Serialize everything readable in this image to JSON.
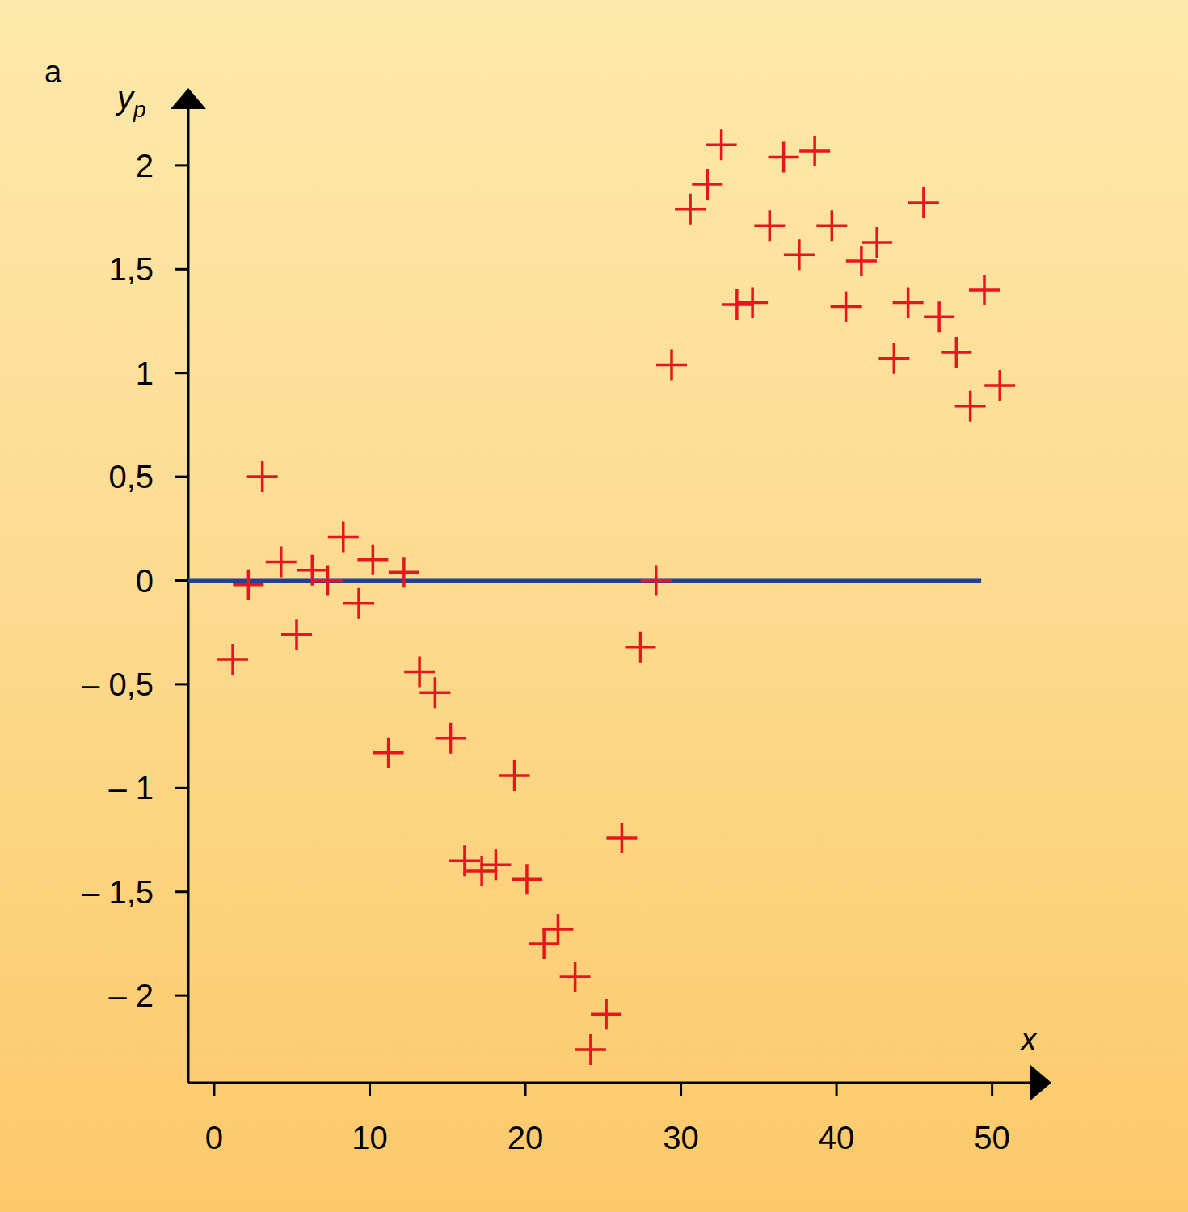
{
  "chart_data": {
    "type": "scatter",
    "title": "a",
    "xlabel": "x",
    "ylabel": "yp",
    "xlim": [
      -1.66,
      53.5
    ],
    "ylim": [
      -2.42,
      2.35
    ],
    "xticks": [
      0,
      10,
      20,
      30,
      40,
      50
    ],
    "yticks": [
      {
        "value": -2,
        "label": "– 2"
      },
      {
        "value": -1.5,
        "label": "– 1,5"
      },
      {
        "value": -1,
        "label": "– 1"
      },
      {
        "value": -0.5,
        "label": "– 0,5"
      },
      0,
      {
        "value": 0.5,
        "label": "0,5"
      },
      1,
      {
        "value": 1.5,
        "label": "1,5"
      },
      2
    ],
    "grid": false,
    "series": [
      {
        "type": "scatter",
        "marker": "plus",
        "color": "#e8161c",
        "x": [
          1.2,
          2.2,
          3.1,
          4.3,
          5.3,
          6.3,
          7.3,
          8.3,
          9.3,
          10.2,
          11.2,
          12.2,
          13.2,
          14.2,
          15.2,
          16.1,
          17.2,
          18.1,
          19.3,
          20.1,
          21.2,
          22.1,
          23.2,
          24.2,
          25.2,
          26.2,
          27.4,
          28.4,
          29.4,
          30.6,
          31.7,
          32.6,
          33.6,
          34.6,
          35.7,
          36.6,
          37.6,
          38.6,
          39.7,
          40.6,
          41.6,
          42.6,
          43.7,
          44.6,
          45.6,
          46.6,
          47.7,
          48.6,
          49.5,
          50.5
        ],
        "values": [
          -0.38,
          -0.02,
          0.5,
          0.09,
          -0.26,
          0.05,
          0.0,
          0.21,
          -0.11,
          0.1,
          -0.83,
          0.04,
          -0.44,
          -0.54,
          -0.76,
          -1.35,
          -1.4,
          -1.37,
          -0.94,
          -1.44,
          -1.75,
          -1.68,
          -1.91,
          -2.26,
          -2.09,
          -1.24,
          -0.32,
          0.0,
          1.04,
          1.79,
          1.91,
          2.1,
          1.33,
          1.34,
          1.71,
          2.04,
          1.57,
          2.07,
          1.71,
          1.32,
          1.54,
          1.63,
          1.07,
          1.34,
          1.82,
          1.27,
          1.1,
          0.84,
          1.4,
          0.94
        ]
      },
      {
        "type": "line",
        "line_style": "solid",
        "color": "#1f3f99",
        "x": [
          -1.66,
          49.3
        ],
        "values": [
          0,
          0
        ]
      }
    ]
  }
}
